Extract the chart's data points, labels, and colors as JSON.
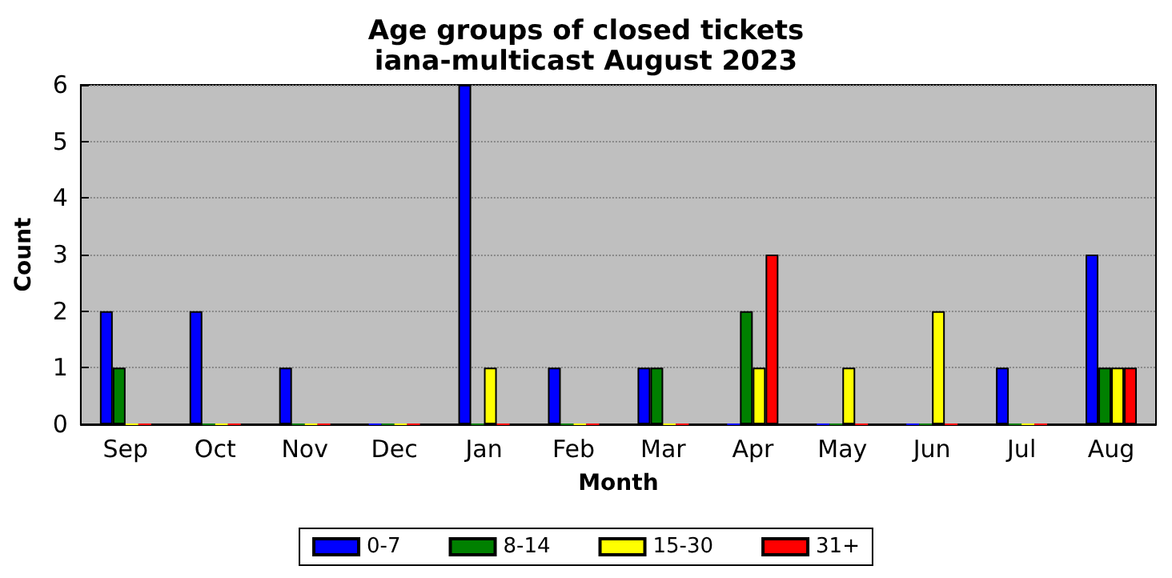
{
  "chart_data": {
    "type": "bar",
    "title": "Age groups of closed tickets",
    "subtitle": "iana-multicast August 2023",
    "xlabel": "Month",
    "ylabel": "Count",
    "categories": [
      "Sep",
      "Oct",
      "Nov",
      "Dec",
      "Jan",
      "Feb",
      "Mar",
      "Apr",
      "May",
      "Jun",
      "Jul",
      "Aug"
    ],
    "series": [
      {
        "name": "0-7",
        "color": "#0000ff",
        "values": [
          2,
          2,
          1,
          0,
          6,
          1,
          1,
          0,
          0,
          0,
          1,
          3
        ]
      },
      {
        "name": "8-14",
        "color": "#008000",
        "values": [
          1,
          0,
          0,
          0,
          0,
          0,
          1,
          2,
          0,
          0,
          0,
          1
        ]
      },
      {
        "name": "15-30",
        "color": "#ffff00",
        "values": [
          0,
          0,
          0,
          0,
          1,
          0,
          0,
          1,
          1,
          2,
          0,
          1
        ]
      },
      {
        "name": "31+",
        "color": "#ff0000",
        "values": [
          0,
          0,
          0,
          0,
          0,
          0,
          0,
          3,
          0,
          0,
          0,
          1
        ]
      }
    ],
    "ylim": [
      0,
      6
    ],
    "yticks": [
      0,
      1,
      2,
      3,
      4,
      5,
      6
    ],
    "grid": "y",
    "legend": "bottom"
  }
}
